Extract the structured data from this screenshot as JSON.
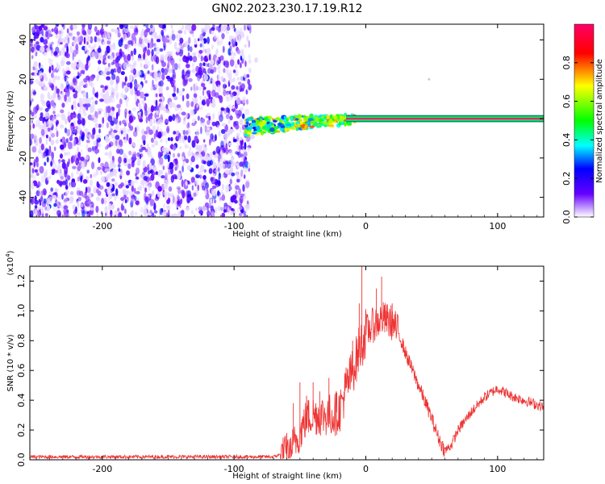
{
  "title": "GN02.2023.230.17.19.R12",
  "chart_data": [
    {
      "type": "heatmap",
      "xlabel": "Height of straight line (km)",
      "ylabel": "Frequency (Hz)",
      "xlim": [
        -255,
        135
      ],
      "ylim": [
        -50,
        48
      ],
      "xticks": [
        -200,
        -100,
        0,
        100
      ],
      "yticks": [
        -40,
        -20,
        0,
        20,
        40
      ],
      "colorbar": {
        "label": "Normalized spectral amplitude",
        "range": [
          0.0,
          1.0
        ],
        "ticks": [
          0.0,
          0.2,
          0.4,
          0.6,
          0.8
        ],
        "colors": [
          "#ffffff",
          "#6600ff",
          "#0000ff",
          "#00ffff",
          "#00ff00",
          "#ffff00",
          "#ff0000",
          "#ff0066"
        ]
      },
      "noise_region": {
        "x": [
          -255,
          -88
        ],
        "amplitude": 0.15
      },
      "ridge": {
        "x": [
          -90,
          135
        ],
        "frequency": 0,
        "amplitude_start": 0.4,
        "amplitude_end": 0.9
      }
    },
    {
      "type": "line",
      "xlabel": "Height of straight line (km)",
      "ylabel": "SNR (10 * v/v)",
      "yexponent": "(x10",
      "yexponent_power": "4",
      "xlim": [
        -255,
        135
      ],
      "ylim": [
        0,
        1.3
      ],
      "xticks": [
        -200,
        -100,
        0,
        100
      ],
      "yticks": [
        0.0,
        0.2,
        0.4,
        0.6,
        0.8,
        1.0,
        1.2
      ],
      "series": [
        {
          "color": "#ee3333",
          "x": [
            -255,
            -200,
            -150,
            -100,
            -70,
            -60,
            -55,
            -50,
            -45,
            -40,
            -35,
            -30,
            -25,
            -20,
            -15,
            -10,
            -7,
            -5,
            -3,
            -1,
            0,
            3,
            5,
            8,
            10,
            12,
            15,
            20,
            25,
            30,
            40,
            50,
            55,
            60,
            65,
            70,
            80,
            90,
            100,
            110,
            120,
            130,
            135
          ],
          "y": [
            0.02,
            0.02,
            0.02,
            0.02,
            0.02,
            0.05,
            0.1,
            0.18,
            0.28,
            0.3,
            0.3,
            0.3,
            0.3,
            0.33,
            0.48,
            0.6,
            0.68,
            0.75,
            0.78,
            0.83,
            0.86,
            0.88,
            0.9,
            0.92,
            0.93,
            0.95,
            0.94,
            0.92,
            0.85,
            0.72,
            0.5,
            0.28,
            0.15,
            0.06,
            0.1,
            0.2,
            0.32,
            0.42,
            0.48,
            0.43,
            0.4,
            0.37,
            0.35
          ],
          "spikes": [
            [
              -60,
              0.18
            ],
            [
              -55,
              0.38
            ],
            [
              -50,
              0.52
            ],
            [
              -45,
              0.43
            ],
            [
              -40,
              0.52
            ],
            [
              -35,
              0.46
            ],
            [
              -28,
              0.55
            ],
            [
              -22,
              0.45
            ],
            [
              -15,
              0.62
            ],
            [
              -10,
              0.8
            ],
            [
              -5,
              1.05
            ],
            [
              -3,
              1.3
            ],
            [
              0,
              1.0
            ],
            [
              8,
              1.15
            ],
            [
              12,
              1.23
            ],
            [
              15,
              1.0
            ],
            [
              20,
              1.05
            ]
          ]
        }
      ]
    }
  ]
}
